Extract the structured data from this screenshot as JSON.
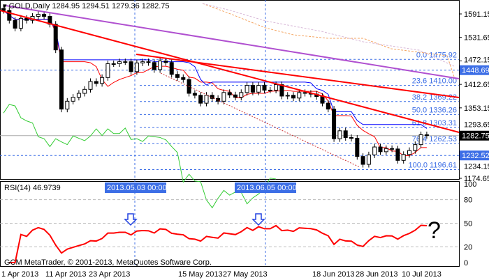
{
  "header": {
    "symbol": "GOLD,Daily",
    "ohlc": "1284.95 1294.51 1279.36 1282.75"
  },
  "price_axis": {
    "ticks": [
      "1591.15",
      "1531.65",
      "1472.15",
      "1412.65",
      "1353.15",
      "1293.65",
      "1234.15",
      "1174.65"
    ],
    "min": 1174.65,
    "max": 1591.15
  },
  "price_labels": [
    {
      "value": 1448.69,
      "text": "1448.69",
      "color": "#3c6ee6"
    },
    {
      "value": 1282.75,
      "text": "1282.75",
      "color": "#000000"
    },
    {
      "value": 1232.52,
      "text": "1232.52",
      "color": "#3c6ee6"
    }
  ],
  "fib_levels": [
    {
      "text": "0.0 1475.92",
      "value": 1475.92
    },
    {
      "text": "23.6 1410.00",
      "value": 1410.0
    },
    {
      "text": "38.2 1369.22",
      "value": 1369.22
    },
    {
      "text": "50.0 1336.26",
      "value": 1336.26
    },
    {
      "text": "61.8 1303.31",
      "value": 1303.31
    },
    {
      "text": "76.4 1262.53",
      "value": 1262.53
    },
    {
      "text": "100.0 1196.61",
      "value": 1196.61
    }
  ],
  "rsi": {
    "label": "RSI(14) 46.9739",
    "ticks": [
      "100",
      "80",
      "50",
      "20",
      "0"
    ],
    "question": "?"
  },
  "footer": {
    "copyright": "GCM MetaTrader, © 2001-2013, MetaQuotes Software Corp."
  },
  "time_axis": {
    "labels": [
      "1 Apr 2013",
      "11 Apr 2013",
      "23 Apr 2013",
      "15 May 2013",
      "27 May 2013",
      "18 Jun 2013",
      "28 Jun 2013",
      "10 Jul 2013"
    ],
    "cursor_labels": [
      "2013.05.03 00:00",
      "2013.06.05 00:00"
    ]
  },
  "colors": {
    "bull": "#ffffff",
    "bear": "#000000",
    "trend": "#ff0000",
    "channel": "#b050d0",
    "tenkan": "#ff0000",
    "kijun": "#0000ff",
    "chikou": "#33cc33",
    "fib": "#3c6ee6"
  },
  "chart_data": {
    "type": "candlestick",
    "title": "GOLD,Daily",
    "closes": [
      1600,
      1575,
      1555,
      1580,
      1575,
      1585,
      1590,
      1585,
      1565,
      1500,
      1350,
      1370,
      1380,
      1390,
      1400,
      1420,
      1415,
      1430,
      1465,
      1465,
      1470,
      1470,
      1445,
      1467,
      1470,
      1468,
      1450,
      1472,
      1468,
      1438,
      1430,
      1425,
      1390,
      1385,
      1365,
      1385,
      1377,
      1370,
      1392,
      1386,
      1380,
      1392,
      1410,
      1393,
      1410,
      1398,
      1398,
      1412,
      1383,
      1385,
      1378,
      1392,
      1390,
      1388,
      1382,
      1365,
      1350,
      1275,
      1295,
      1278,
      1276,
      1230,
      1210,
      1234,
      1254,
      1242,
      1250,
      1249,
      1220,
      1235,
      1245,
      1260,
      1285,
      1283
    ]
  }
}
